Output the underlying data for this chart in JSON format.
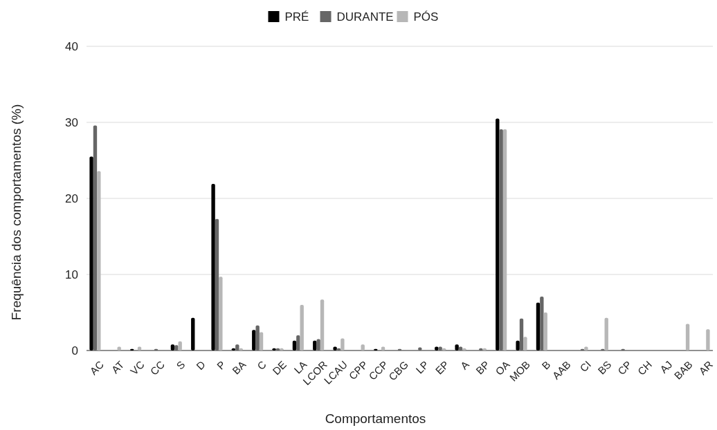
{
  "chart_data": {
    "type": "bar",
    "xlabel": "Comportamentos",
    "ylabel": "Frequência dos comportamentos (%)",
    "categories": [
      "AC",
      "AT",
      "VC",
      "CC",
      "S",
      "D",
      "P",
      "BA",
      "C",
      "DE",
      "LA",
      "LCOR",
      "LCAU",
      "CPP",
      "CCP",
      "CBG",
      "LP",
      "EP",
      "A",
      "BP",
      "OA",
      "MOB",
      "B",
      "AAB",
      "CI",
      "BS",
      "CP",
      "CH",
      "AJ",
      "BAB",
      "AR"
    ],
    "series": [
      {
        "name": "PRÉ",
        "color": "#000000",
        "values": [
          25.5,
          0,
          0.2,
          0,
          0.8,
          4.3,
          21.9,
          0.3,
          2.7,
          0.3,
          1.3,
          1.3,
          0.5,
          0,
          0.2,
          0,
          0,
          0.5,
          0.8,
          0,
          30.5,
          1.3,
          6.3,
          0,
          0,
          0,
          0,
          0,
          0,
          0,
          0
        ]
      },
      {
        "name": "DURANTE",
        "color": "#666666",
        "values": [
          29.6,
          0,
          0,
          0.2,
          0.7,
          0,
          17.3,
          0.8,
          3.3,
          0.3,
          2.0,
          1.5,
          0.3,
          0,
          0,
          0.2,
          0.4,
          0.5,
          0.5,
          0.3,
          29.1,
          4.2,
          7.1,
          0,
          0.2,
          0.2,
          0.2,
          0,
          0,
          0,
          0
        ]
      },
      {
        "name": "PÓS",
        "color": "#b7b7b7",
        "values": [
          23.6,
          0.5,
          0.5,
          0,
          1.2,
          0,
          9.7,
          0.3,
          2.4,
          0.3,
          6.0,
          6.7,
          1.6,
          0.8,
          0.5,
          0,
          0,
          0.3,
          0.3,
          0.3,
          29.1,
          1.8,
          5.0,
          0,
          0.5,
          4.3,
          0,
          0,
          0,
          3.5,
          2.8
        ]
      }
    ],
    "ylim": [
      0,
      40
    ],
    "yticks": [
      0,
      10,
      20,
      30,
      40
    ],
    "grid": true,
    "legend": "top"
  }
}
